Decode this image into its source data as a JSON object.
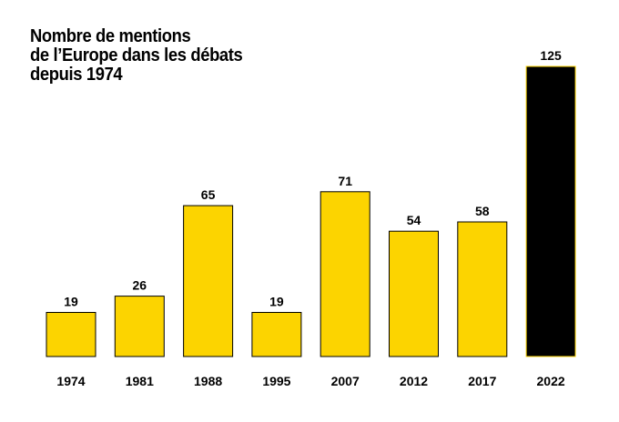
{
  "chart_data": {
    "type": "bar",
    "title_lines": [
      "Nombre de mentions",
      "de l’Europe dans les débats",
      "depuis 1974"
    ],
    "categories": [
      "1974",
      "1981",
      "1988",
      "1995",
      "2007",
      "2012",
      "2017",
      "2022"
    ],
    "values": [
      19,
      26,
      65,
      19,
      71,
      54,
      58,
      125
    ],
    "data_labels": [
      "19",
      "26",
      "65",
      "19",
      "71",
      "54",
      "58",
      "125"
    ],
    "xlabel": "",
    "ylabel": "",
    "ylim": [
      0,
      125
    ],
    "grid": false,
    "legend": "none",
    "colors": {
      "bar": "#FCD400",
      "highlight": "#000000",
      "highlight_index": 7,
      "border": "#000000",
      "highlight_border": "#FCD400"
    }
  }
}
